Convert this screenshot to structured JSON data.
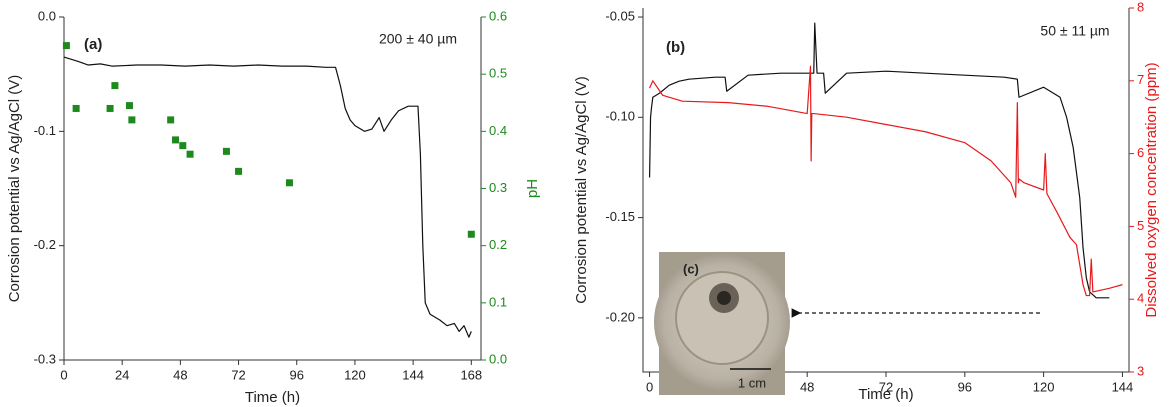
{
  "chart_data": [
    {
      "type": "line",
      "annotations": [
        "(a)",
        "200 ± 40 µm"
      ],
      "xlabel": "Time (h)",
      "ylabel": "Corrosion potential vs Ag/AgCl (V)",
      "y2label": "pH",
      "y2color": "#1d8a1d",
      "xlim": [
        0,
        172
      ],
      "xticks": [
        0,
        24,
        48,
        72,
        96,
        120,
        144,
        168
      ],
      "ylim": [
        -0.3,
        0
      ],
      "yticks": [
        -0.3,
        -0.2,
        -0.1,
        {
          "value": 0,
          "label": "0.0"
        }
      ],
      "y2lim": [
        0,
        0.6
      ],
      "y2ticks": [
        {
          "value": 0,
          "label": "0.0"
        },
        0.1,
        0.2,
        0.3,
        0.4,
        0.5,
        0.6
      ],
      "series": [
        {
          "color": "#111111",
          "marker": "none",
          "x": [
            0,
            3,
            6,
            10,
            15,
            20,
            30,
            40,
            50,
            60,
            70,
            80,
            90,
            100,
            108,
            112,
            114,
            116,
            118,
            120,
            124,
            127,
            130,
            132,
            135,
            138,
            142,
            146,
            147,
            148,
            149,
            151,
            155,
            158,
            161,
            163,
            165,
            167,
            168
          ],
          "values": [
            -0.035,
            -0.037,
            -0.039,
            -0.042,
            -0.041,
            -0.043,
            -0.042,
            -0.042,
            -0.043,
            -0.042,
            -0.043,
            -0.042,
            -0.043,
            -0.043,
            -0.044,
            -0.044,
            -0.06,
            -0.08,
            -0.09,
            -0.095,
            -0.1,
            -0.098,
            -0.088,
            -0.1,
            -0.09,
            -0.082,
            -0.078,
            -0.078,
            -0.12,
            -0.2,
            -0.25,
            -0.26,
            -0.265,
            -0.27,
            -0.268,
            -0.275,
            -0.27,
            -0.28,
            -0.275
          ]
        },
        {
          "color": "#1d8a1d",
          "marker": "square",
          "axis": "y2",
          "x": [
            1,
            5,
            19,
            21,
            27,
            28,
            44,
            46,
            49,
            52,
            67,
            72,
            93,
            168
          ],
          "values": [
            0.55,
            0.44,
            0.44,
            0.48,
            0.445,
            0.42,
            0.42,
            0.385,
            0.375,
            0.36,
            0.365,
            0.33,
            0.31,
            0.22
          ]
        }
      ]
    },
    {
      "type": "line",
      "annotations": [
        "(b)",
        "50 ± 11 µm",
        "(c)",
        "1 cm"
      ],
      "xlabel": "Time (h)",
      "ylabel": "Corrosion potential vs Ag/AgCl (V)",
      "y2label": "Dissolved oxygen concentration (ppm)",
      "y2color": "#e8191b",
      "xlim": [
        -2,
        146
      ],
      "xticks": [
        0,
        24,
        48,
        72,
        96,
        120,
        144
      ],
      "ylim": [
        -0.227,
        -0.0455
      ],
      "yticks": [
        {
          "value": -0.2,
          "label": "-0.20"
        },
        {
          "value": -0.15,
          "label": "-0.15"
        },
        {
          "value": -0.1,
          "label": "-0.10"
        },
        {
          "value": -0.05,
          "label": "-0.05"
        }
      ],
      "y2lim": [
        3,
        8
      ],
      "y2ticks": [
        3,
        4,
        5,
        6,
        7,
        8
      ],
      "series": [
        {
          "color": "#111111",
          "marker": "none",
          "x": [
            0,
            0.3,
            0.6,
            1,
            3,
            6,
            9,
            12,
            20,
            23,
            23.5,
            30,
            40,
            49,
            50,
            50.3,
            51,
            53,
            53.5,
            60,
            72,
            84,
            96,
            108,
            112,
            112.5,
            120,
            125,
            127,
            129,
            131,
            132,
            133,
            134,
            136,
            140
          ],
          "values": [
            -0.13,
            -0.1,
            -0.095,
            -0.09,
            -0.088,
            -0.084,
            -0.082,
            -0.081,
            -0.08,
            -0.08,
            -0.087,
            -0.079,
            -0.078,
            -0.078,
            -0.078,
            -0.053,
            -0.078,
            -0.078,
            -0.088,
            -0.078,
            -0.077,
            -0.078,
            -0.079,
            -0.08,
            -0.081,
            -0.09,
            -0.085,
            -0.09,
            -0.1,
            -0.115,
            -0.14,
            -0.165,
            -0.18,
            -0.187,
            -0.19,
            -0.19
          ]
        },
        {
          "color": "#e8191b",
          "marker": "none",
          "axis": "y2",
          "x": [
            0,
            1,
            4,
            10,
            24,
            36,
            48,
            49,
            49.2,
            49.4,
            50,
            60,
            72,
            84,
            96,
            104,
            110,
            111.5,
            112,
            112.3,
            112.6,
            114,
            120,
            120.5,
            121,
            124,
            128,
            130,
            132,
            133,
            134,
            134.5,
            135,
            140,
            144
          ],
          "values": [
            6.9,
            7.0,
            6.8,
            6.72,
            6.7,
            6.65,
            6.55,
            7.2,
            5.9,
            6.55,
            6.55,
            6.5,
            6.4,
            6.3,
            6.15,
            5.9,
            5.6,
            5.4,
            6.7,
            5.6,
            5.65,
            5.6,
            5.5,
            6.0,
            5.45,
            5.2,
            4.85,
            4.75,
            4.2,
            4.05,
            4.05,
            4.55,
            4.1,
            4.15,
            4.2
          ]
        }
      ]
    }
  ]
}
